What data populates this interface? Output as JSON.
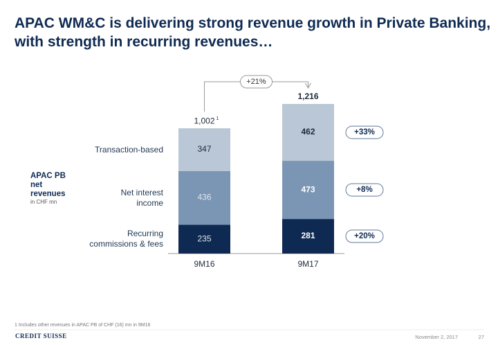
{
  "chart_data": {
    "type": "bar",
    "stacked": true,
    "title": "APAC WM&C is delivering strong revenue growth in Private Banking, with strength in recurring revenues…",
    "axis_title": "APAC PB net revenues",
    "unit": "in CHF mn",
    "categories": [
      "9M16",
      "9M17"
    ],
    "series": [
      {
        "name": "Recurring commissions & fees",
        "color": "#0f2a52",
        "values": [
          235,
          281
        ],
        "change": 20,
        "change_label": "+20%"
      },
      {
        "name": "Net interest income",
        "color": "#7b96b4",
        "values": [
          436,
          473
        ],
        "change": 8,
        "change_label": "+8%"
      },
      {
        "name": "Transaction-based",
        "color": "#b9c7d6",
        "values": [
          347,
          462
        ],
        "change": 33,
        "change_label": "+33%"
      }
    ],
    "totals": [
      {
        "value": 1002,
        "label": "1,002"
      },
      {
        "value": 1216,
        "label": "1,216"
      }
    ],
    "footnote_marker": "1",
    "total_change": 21,
    "total_change_label": "+21%",
    "footnote": "1 Includes other revenues in APAC PB of CHF (16) mn in 9M16",
    "date": "November 2, 2017",
    "page": "27",
    "logo": "CREDIT SUISSE"
  }
}
